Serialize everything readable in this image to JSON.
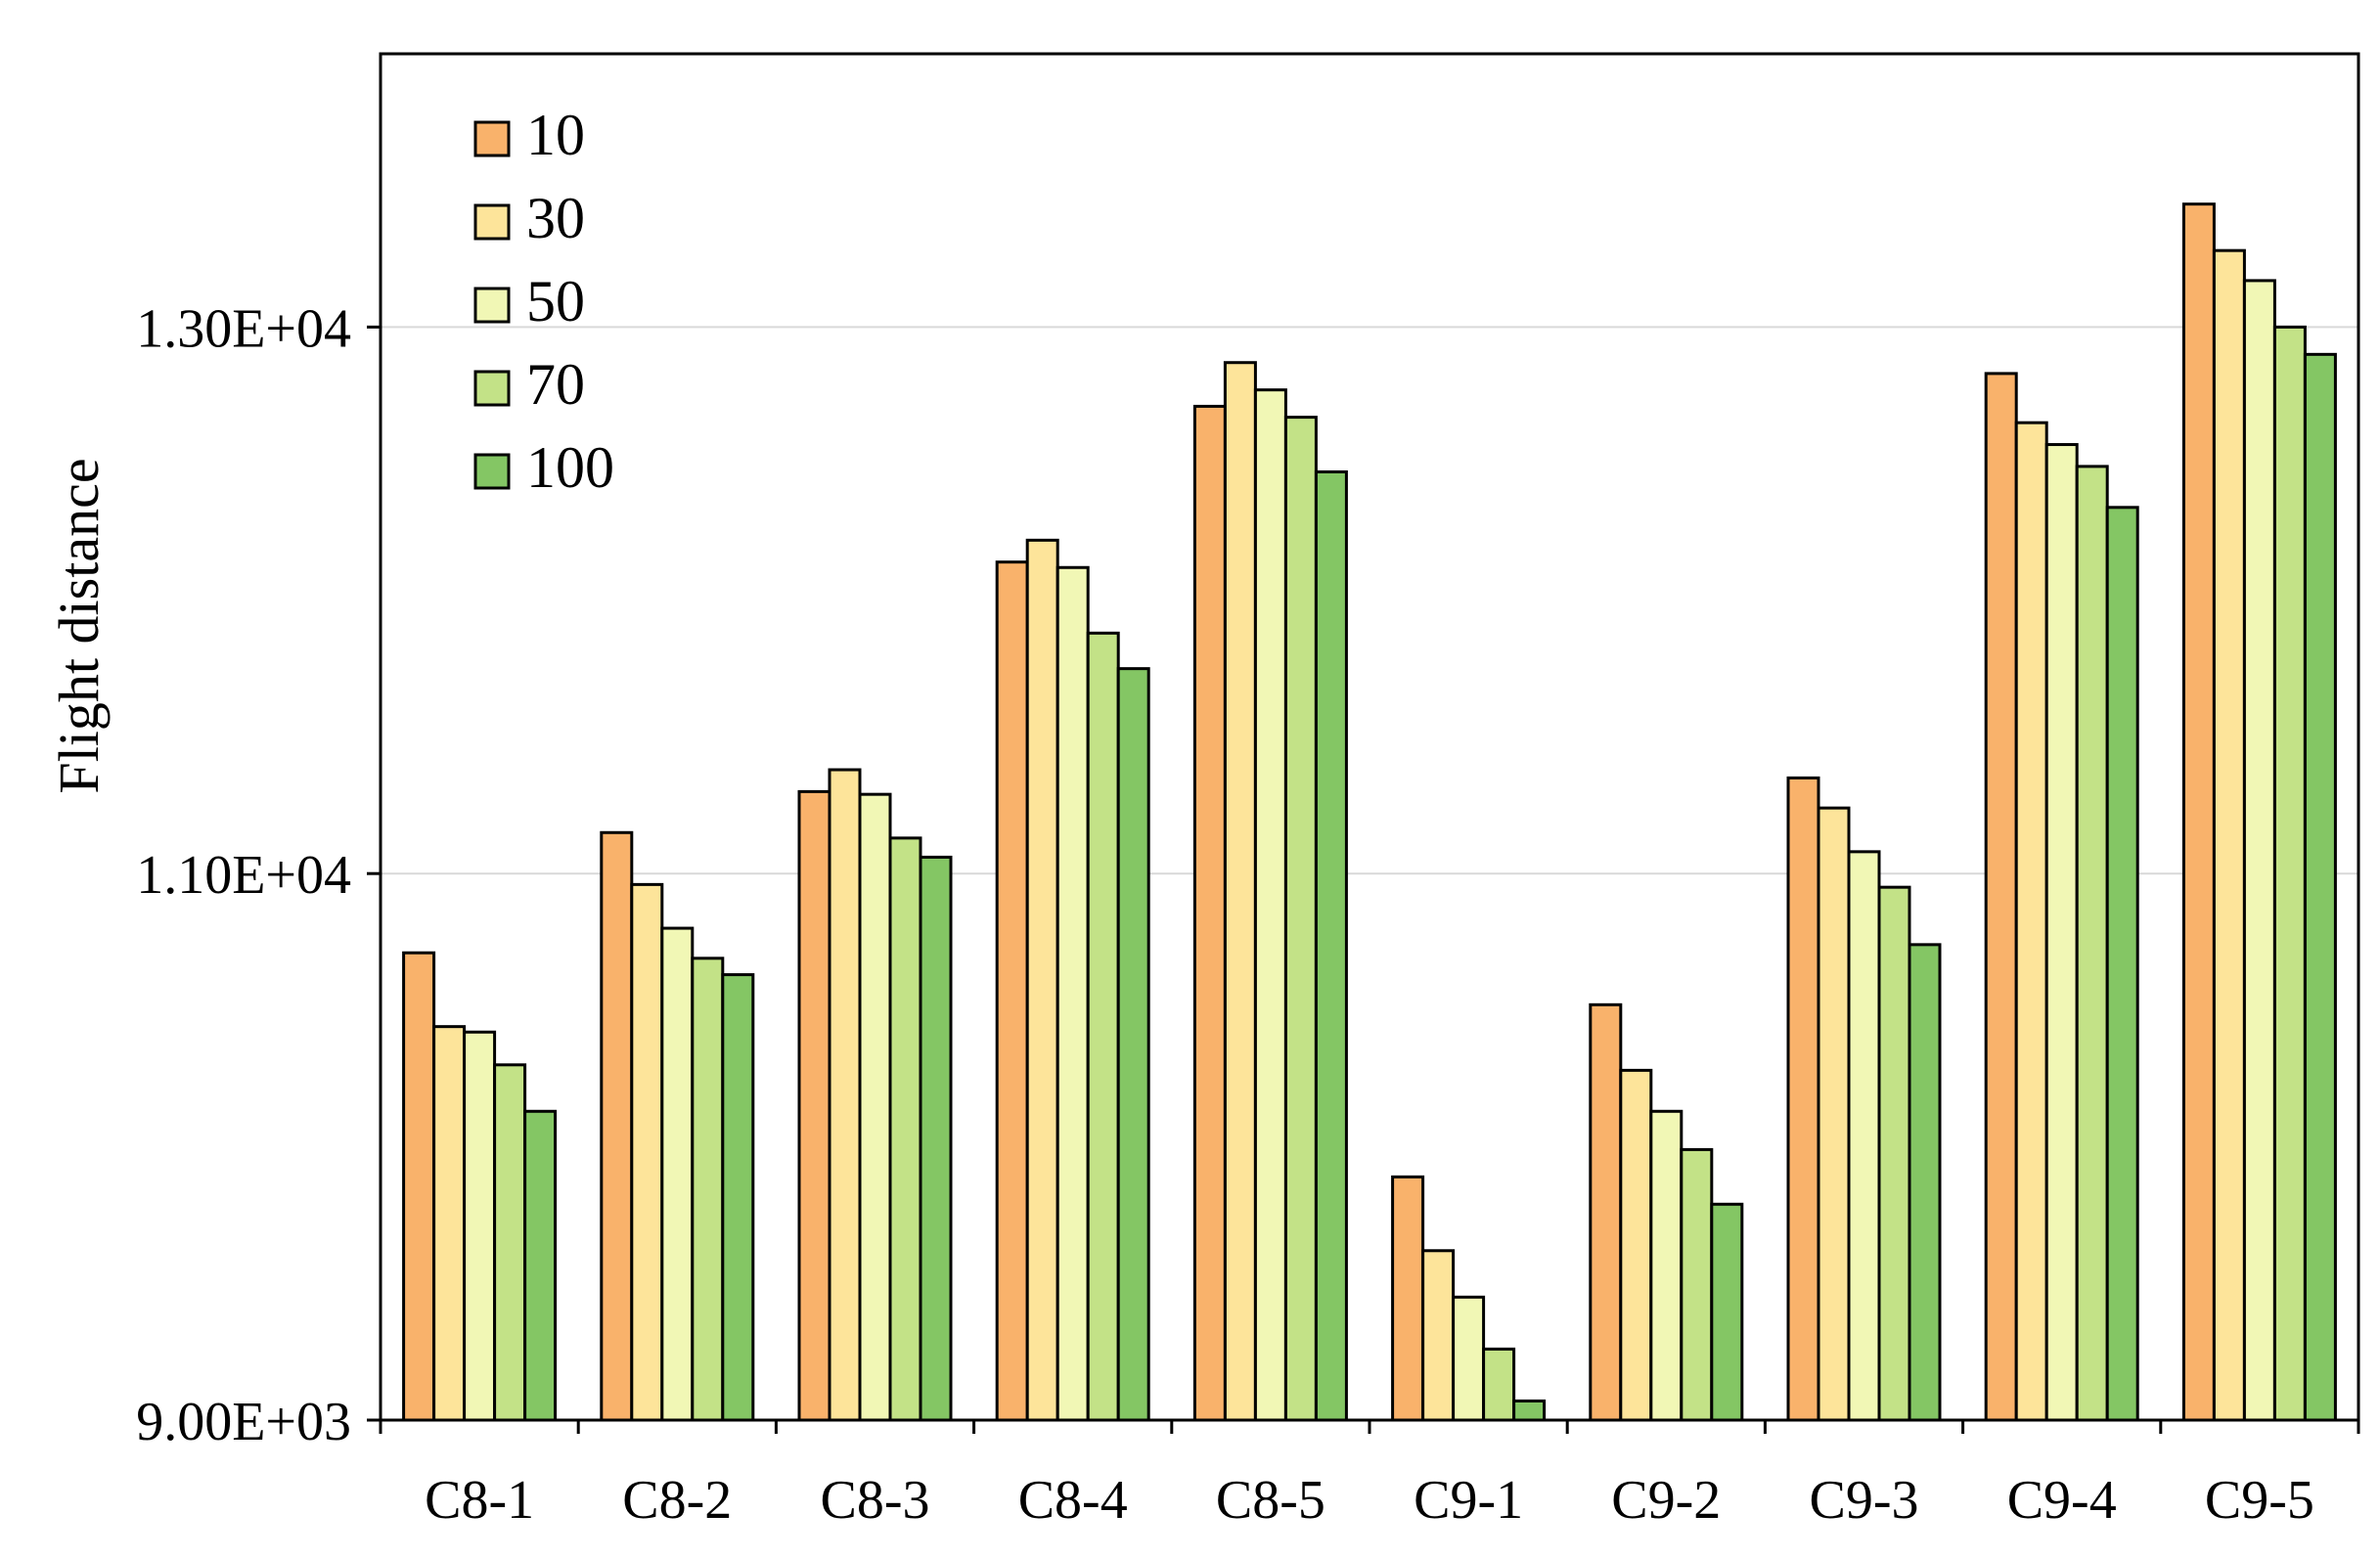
{
  "chart_data": {
    "type": "bar",
    "title": "",
    "xlabel": "",
    "ylabel": "Flight distance",
    "ylim": [
      9000,
      14000
    ],
    "yticks": [
      9000,
      11000,
      13000
    ],
    "ytick_labels": [
      "9.00E+03",
      "1.10E+04",
      "1.30E+04"
    ],
    "grid": "horizontal",
    "legend_position": "top-left",
    "categories": [
      "C8-1",
      "C8-2",
      "C8-3",
      "C8-4",
      "C8-5",
      "C9-1",
      "C9-2",
      "C9-3",
      "C9-4",
      "C9-5"
    ],
    "series": [
      {
        "name": "10",
        "color": "#F9B26B",
        "values": [
          10710,
          11150,
          11300,
          12140,
          12710,
          9890,
          10520,
          11350,
          12830,
          13450
        ]
      },
      {
        "name": "30",
        "color": "#FDE49A",
        "values": [
          10440,
          10960,
          11380,
          12220,
          12870,
          9620,
          10280,
          11240,
          12650,
          13280
        ]
      },
      {
        "name": "50",
        "color": "#F1F7B5",
        "values": [
          10420,
          10800,
          11290,
          12120,
          12770,
          9450,
          10130,
          11080,
          12570,
          13170
        ]
      },
      {
        "name": "70",
        "color": "#C3E287",
        "values": [
          10300,
          10690,
          11130,
          11880,
          12670,
          9260,
          9990,
          10950,
          12490,
          13000
        ]
      },
      {
        "name": "100",
        "color": "#84C664",
        "values": [
          10130,
          10630,
          11060,
          11750,
          12470,
          9070,
          9790,
          10740,
          12340,
          12900
        ]
      }
    ]
  }
}
